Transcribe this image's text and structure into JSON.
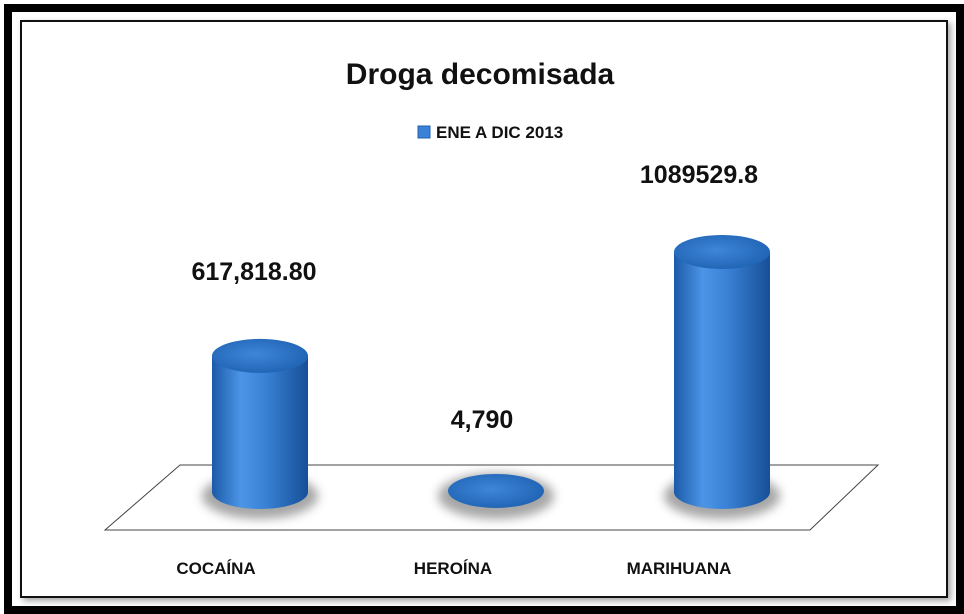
{
  "chart_data": {
    "type": "bar",
    "title": "Droga decomisada",
    "legend": {
      "position": "top",
      "entries": [
        "ENE A DIC 2013"
      ]
    },
    "categories": [
      "COCAÍNA",
      "HEROÍNA",
      "MARIHUANA"
    ],
    "series": [
      {
        "name": "ENE A DIC 2013",
        "values": [
          617818.8,
          4790,
          1089529.8
        ]
      }
    ],
    "data_labels": [
      "617,818.80",
      "4,790",
      "1089529.8"
    ],
    "style": "3d-cylinder",
    "grid": false,
    "colors": {
      "bar": "#3a82d6",
      "bar_dark": "#1e5fae",
      "bar_top": "#2a6fc4"
    }
  }
}
